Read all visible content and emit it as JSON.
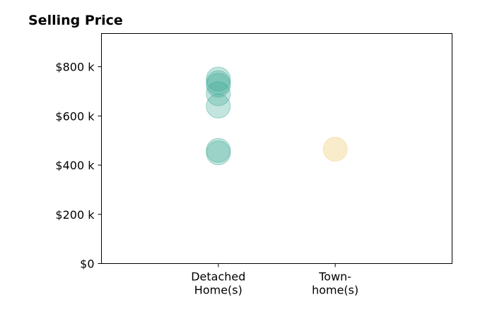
{
  "chart_data": {
    "type": "scatter",
    "title": "Selling Price",
    "xlabel": "",
    "ylabel": "",
    "categories": [
      [
        "Detached",
        "Home(s)"
      ],
      [
        "Town-",
        "home(s)"
      ]
    ],
    "ylim": [
      0,
      935000
    ],
    "yticks": [
      {
        "value": 0,
        "label": "$0"
      },
      {
        "value": 200000,
        "label": "$200 k"
      },
      {
        "value": 400000,
        "label": "$400 k"
      },
      {
        "value": 600000,
        "label": "$600 k"
      },
      {
        "value": 800000,
        "label": "$800 k"
      }
    ],
    "grid": false,
    "series": [
      {
        "category_index": 0,
        "color": "#3aa895",
        "opacity": 0.3,
        "values": [
          750000,
          735000,
          725000,
          690000,
          640000,
          460000,
          450000
        ]
      },
      {
        "category_index": 1,
        "color": "#f5dfa8",
        "opacity": 0.6,
        "values": [
          465000
        ]
      }
    ]
  }
}
